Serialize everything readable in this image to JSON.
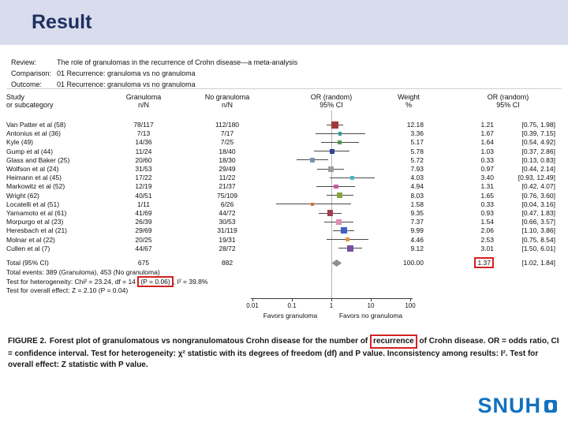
{
  "slide": {
    "title": "Result"
  },
  "figure": {
    "review_label": "Review:",
    "review_text": "The role of granulomas in the recurrence of Crohn disease—a meta-analysis",
    "comparison_label": "Comparison:",
    "comparison_text": "01 Recurrence: granuloma vs no granuloma",
    "outcome_label": "Outcome:",
    "outcome_text": "01 Recurrence: granuloma vs no granuloma",
    "columns": {
      "study1": "Study",
      "study2": "or subcategory",
      "granuloma": "Granuloma",
      "no_granuloma": "No granuloma",
      "nN": "n/N",
      "or_random": "OR (random)",
      "ci": "95% CI",
      "weight": "Weight",
      "pct": "%"
    },
    "total_label": "Total (95% CI)",
    "total_granuloma": "675",
    "total_no_granuloma": "882",
    "total_weight": "100.00",
    "total_or": "1.37",
    "total_ci": "[1.02, 1.84]",
    "total_events": "Total events: 389 (Granuloma), 453 (No granuloma)",
    "heterogeneity_pre": "Test for heterogeneity: Chi² = 23.24, df = 14 ",
    "heterogeneity_boxed": "(P = 0.06)",
    "heterogeneity_post": ", I² = 39.8%",
    "overall_effect": "Test for overall effect: Z = 2.10 (P = 0.04)"
  },
  "chart_data": {
    "type": "forest",
    "x_scale": "log",
    "x_range": [
      0.01,
      100
    ],
    "x_ticks": [
      "0.01",
      "0.1",
      "1",
      "10",
      "100"
    ],
    "favors_left": "Favors granuloma",
    "favors_right": "Favors no granuloma",
    "studies": [
      {
        "name": "Van Patter et al (58)",
        "granuloma": "78/117",
        "no_granuloma": "112/180",
        "weight": "12.18",
        "or": 1.21,
        "ci_low": 0.75,
        "ci_high": 1.98,
        "or_text": "1.21",
        "ci_text": "[0.75, 1.98]",
        "color": "#a03a3a"
      },
      {
        "name": "Antonius et al (36)",
        "granuloma": "7/13",
        "no_granuloma": "7/17",
        "weight": "3.36",
        "or": 1.67,
        "ci_low": 0.39,
        "ci_high": 7.15,
        "or_text": "1.67",
        "ci_text": "[0.39, 7.15]",
        "color": "#2f9e9a"
      },
      {
        "name": "Kyle (49)",
        "granuloma": "14/36",
        "no_granuloma": "7/25",
        "weight": "5.17",
        "or": 1.64,
        "ci_low": 0.54,
        "ci_high": 4.92,
        "or_text": "1.64",
        "ci_text": "[0.54, 4.92]",
        "color": "#4e9e50"
      },
      {
        "name": "Gump et al (44)",
        "granuloma": "11/24",
        "no_granuloma": "18/40",
        "weight": "5.78",
        "or": 1.03,
        "ci_low": 0.37,
        "ci_high": 2.86,
        "or_text": "1.03",
        "ci_text": "[0.37, 2.86]",
        "color": "#2e4193"
      },
      {
        "name": "Glass and Baker (25)",
        "granuloma": "20/60",
        "no_granuloma": "18/30",
        "weight": "5.72",
        "or": 0.33,
        "ci_low": 0.13,
        "ci_high": 0.83,
        "or_text": "0.33",
        "ci_text": "[0.13, 0.83]",
        "color": "#7f8fb0"
      },
      {
        "name": "Wolfson et al (24)",
        "granuloma": "31/53",
        "no_granuloma": "29/49",
        "weight": "7.93",
        "or": 0.97,
        "ci_low": 0.44,
        "ci_high": 2.14,
        "or_text": "0.97",
        "ci_text": "[0.44, 2.14]",
        "color": "#9b9b9b"
      },
      {
        "name": "Heimann et al (45)",
        "granuloma": "17/22",
        "no_granuloma": "11/22",
        "weight": "4.03",
        "or": 3.4,
        "ci_low": 0.93,
        "ci_high": 12.49,
        "or_text": "3.40",
        "ci_text": "[0.93, 12.49]",
        "color": "#49b8c4"
      },
      {
        "name": "Markowitz et al (52)",
        "granuloma": "12/19",
        "no_granuloma": "21/37",
        "weight": "4.94",
        "or": 1.31,
        "ci_low": 0.42,
        "ci_high": 4.07,
        "or_text": "1.31",
        "ci_text": "[0.42, 4.07]",
        "color": "#c45a9e"
      },
      {
        "name": "Wright (62)",
        "granuloma": "40/51",
        "no_granuloma": "75/109",
        "weight": "8.03",
        "or": 1.65,
        "ci_low": 0.76,
        "ci_high": 3.6,
        "or_text": "1.65",
        "ci_text": "[0.76, 3.60]",
        "color": "#8aa23f"
      },
      {
        "name": "Locatelli et al (51)",
        "granuloma": "1/11",
        "no_granuloma": "6/26",
        "weight": "1.58",
        "or": 0.33,
        "ci_low": 0.04,
        "ci_high": 3.16,
        "or_text": "0.33",
        "ci_text": "[0.04, 3.16]",
        "color": "#d4703a"
      },
      {
        "name": "Yamamoto et al (61)",
        "granuloma": "41/69",
        "no_granuloma": "44/72",
        "weight": "9.35",
        "or": 0.93,
        "ci_low": 0.47,
        "ci_high": 1.83,
        "or_text": "0.93",
        "ci_text": "[0.47, 1.83]",
        "color": "#a23f52"
      },
      {
        "name": "Morpurgo et al (23)",
        "granuloma": "26/39",
        "no_granuloma": "30/53",
        "weight": "7.37",
        "or": 1.54,
        "ci_low": 0.66,
        "ci_high": 3.57,
        "or_text": "1.54",
        "ci_text": "[0.66, 3.57]",
        "color": "#df8fb4"
      },
      {
        "name": "Heresbach et al (21)",
        "granuloma": "29/69",
        "no_granuloma": "31/119",
        "weight": "9.99",
        "or": 2.06,
        "ci_low": 1.1,
        "ci_high": 3.86,
        "or_text": "2.06",
        "ci_text": "[1.10, 3.86]",
        "color": "#3f62c4"
      },
      {
        "name": "Molnar et al (22)",
        "granuloma": "20/25",
        "no_granuloma": "19/31",
        "weight": "4.46",
        "or": 2.53,
        "ci_low": 0.75,
        "ci_high": 8.54,
        "or_text": "2.53",
        "ci_text": "[0.75, 8.54]",
        "color": "#df9a3a"
      },
      {
        "name": "Cullen et al (7)",
        "granuloma": "44/67",
        "no_granuloma": "28/72",
        "weight": "9.12",
        "or": 3.01,
        "ci_low": 1.5,
        "ci_high": 6.01,
        "or_text": "3.01",
        "ci_text": "[1.50, 6.01]",
        "color": "#7a4fa0"
      }
    ],
    "total": {
      "or": 1.37,
      "ci_low": 1.02,
      "ci_high": 1.84
    }
  },
  "caption": {
    "figure_label": "FIGURE 2.",
    "part1": "Forest plot of granulomatous vs nongranulomatous Crohn disease for the number of ",
    "highlight": "recurrence",
    "part2": " of Crohn disease. OR = odds ratio, CI = confidence interval. Test for heterogeneity: χ² statistic with its degrees of freedom (df) and P value. Inconsistency among results: I². Test for overall effect: Z statistic with P value."
  },
  "logo": {
    "text": "SNUH"
  },
  "colors": {
    "header_bg": "#d8dcec",
    "title_navy": "#1f3060",
    "highlight_red": "#d42222",
    "diamond_gray": "#8e8e8e",
    "logo_blue": "#1271c0"
  }
}
